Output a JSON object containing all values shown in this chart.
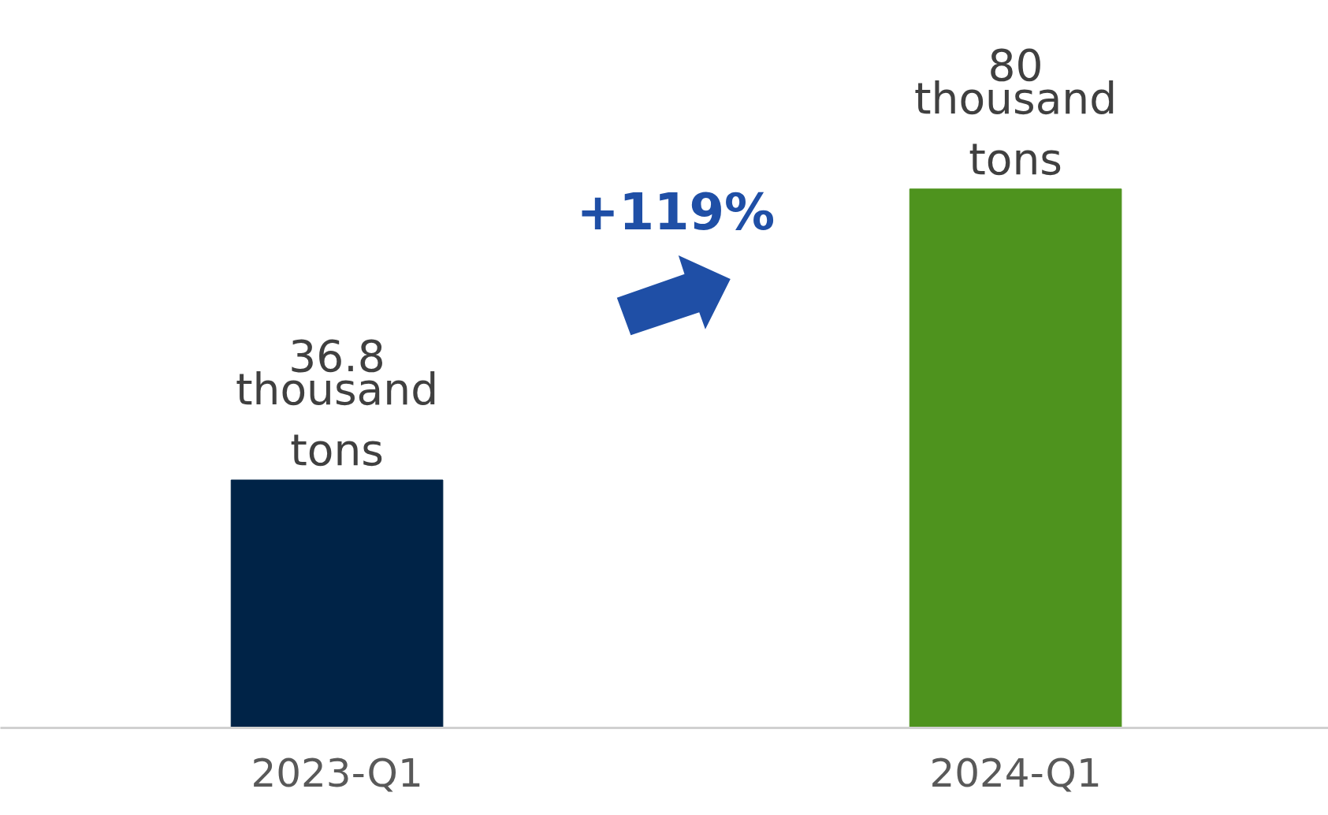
{
  "chart_data": {
    "type": "bar",
    "categories": [
      "2023-Q1",
      "2024-Q1"
    ],
    "values": [
      36.8,
      80
    ],
    "colors": [
      "#002347",
      "#4e931e"
    ],
    "data_labels": true,
    "tick_labels": "x",
    "grid": false,
    "annotations": [
      {
        "text": "thousand\ntons",
        "x": "2023-Q1",
        "y": 36.8
      },
      {
        "text": "thousand\ntons",
        "x": "2024-Q1",
        "y": 80
      },
      "+119%"
    ]
  }
}
